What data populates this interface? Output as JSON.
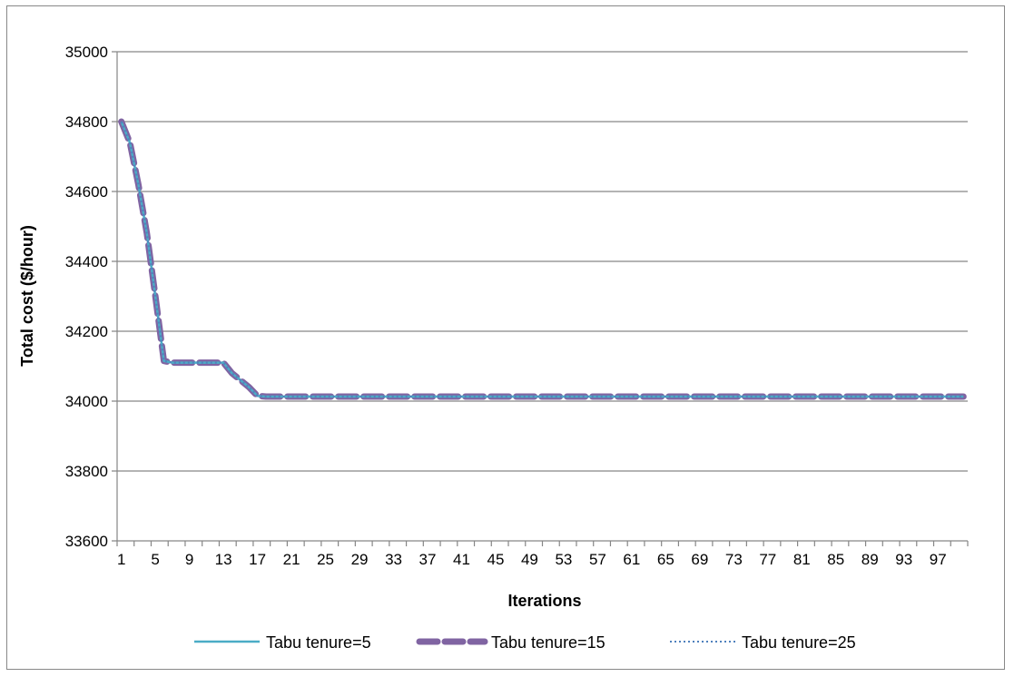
{
  "chart_data": {
    "type": "line",
    "title": "",
    "xlabel": "Iterations",
    "ylabel": "Total cost ($/hour)",
    "ylim": [
      33600,
      35000
    ],
    "yticks": [
      "33600",
      "33800",
      "34000",
      "34200",
      "34400",
      "34600",
      "34800",
      "35000"
    ],
    "xtick_labels": [
      "1",
      "5",
      "9",
      "13",
      "17",
      "21",
      "25",
      "29",
      "33",
      "37",
      "41",
      "45",
      "49",
      "53",
      "57",
      "61",
      "65",
      "69",
      "73",
      "77",
      "81",
      "85",
      "89",
      "93",
      "97"
    ],
    "x_range": [
      1,
      100
    ],
    "grid": "horizontal",
    "legend_position": "bottom",
    "colors": {
      "tenure5": "#4BACC6",
      "tenure15": "#8064A2",
      "tenure25": "#4F81BD",
      "grid": "#868686",
      "axis": "#868686"
    },
    "series": [
      {
        "name": "Tabu tenure=5",
        "style": "solid"
      },
      {
        "name": "Tabu tenure=15",
        "style": "dashed"
      },
      {
        "name": "Tabu tenure=25",
        "style": "dotted"
      }
    ],
    "curve": [
      [
        1,
        34800
      ],
      [
        2,
        34740
      ],
      [
        3,
        34620
      ],
      [
        4,
        34480
      ],
      [
        5,
        34300
      ],
      [
        6,
        34115
      ],
      [
        7,
        34110
      ],
      [
        8,
        34110
      ],
      [
        9,
        34110
      ],
      [
        10,
        34110
      ],
      [
        11,
        34110
      ],
      [
        12,
        34110
      ],
      [
        13,
        34110
      ],
      [
        14,
        34080
      ],
      [
        15,
        34060
      ],
      [
        16,
        34040
      ],
      [
        17,
        34015
      ],
      [
        18,
        34013
      ],
      [
        100,
        34013
      ]
    ]
  }
}
